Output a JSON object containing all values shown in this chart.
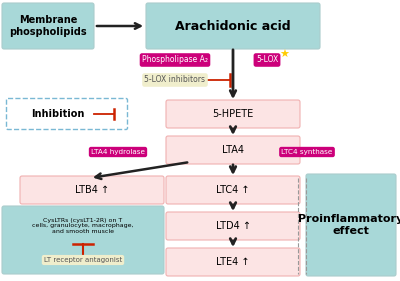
{
  "bg_color": "#ffffff",
  "light_teal": "#a8d8d8",
  "pink_box": "#fce4e4",
  "magenta": "#cc007a",
  "light_yellow": "#f0eecc",
  "inhibition_border": "#7ab8d4",
  "red_inhibit": "#cc2200",
  "arrow_color": "#222222",
  "dashed_line_color": "#999999",
  "membrane_label": "Membrane\nphospholipids",
  "arachidonic_label": "Arachidonic acid",
  "hpete_label": "5-HPETE",
  "lta4_label": "LTA4",
  "ltb4_label": "LTB4 ↑",
  "ltc4_label": "LTC4 ↑",
  "ltd4_label": "LTD4 ↑",
  "lte4_label": "LTE4 ↑",
  "phospholipase_label": "Phospholipase A₂",
  "lox_label": "5-LOX",
  "lta4h_label": "LTA4 hydrolase",
  "ltc4s_label": "LTC4 synthase",
  "lox_inh_label": "5-LOX inhibitors",
  "lt_rec_label": "LT receptor antagonist",
  "inhibition_label": "Inhibition",
  "cysltr_label": "CysLTRs (cysLT1-2R) on T\ncells, granulocyte, macrophage,\nand smooth muscle",
  "proinflam_label": "Proinflammatory\neffect"
}
